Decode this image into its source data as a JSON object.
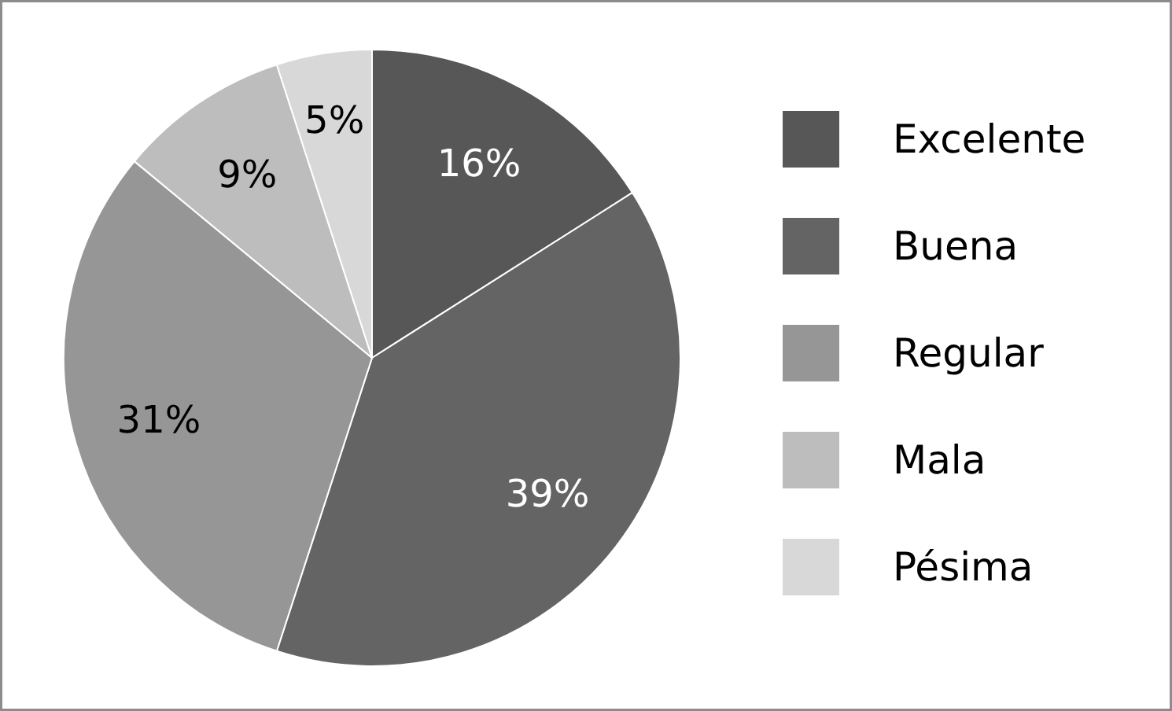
{
  "chart_data": {
    "type": "pie",
    "categories": [
      "Excelente",
      "Buena",
      "Regular",
      "Mala",
      "Pésima"
    ],
    "values": [
      16,
      39,
      31,
      9,
      5
    ],
    "value_labels": [
      "16%",
      "39%",
      "31%",
      "9%",
      "5%"
    ],
    "colors": [
      "#575757",
      "#646464",
      "#969696",
      "#bdbdbd",
      "#d8d8d8"
    ],
    "legend": "right"
  }
}
